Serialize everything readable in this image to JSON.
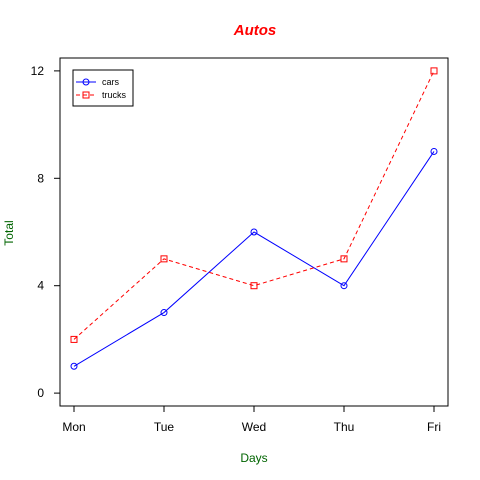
{
  "chart_data": {
    "type": "line",
    "title": "Autos",
    "xlabel": "Days",
    "ylabel": "Total",
    "categories": [
      "Mon",
      "Tue",
      "Wed",
      "Thu",
      "Fri"
    ],
    "yticks": [
      "0",
      "4",
      "8",
      "12"
    ],
    "ytick_values": [
      0,
      4,
      8,
      12
    ],
    "ylim": [
      -0.48,
      12.48
    ],
    "grid": false,
    "legend_position": "top-left",
    "series": [
      {
        "name": "cars",
        "values": [
          1,
          3,
          6,
          4,
          9
        ],
        "color": "#0000ff",
        "line_style": "solid",
        "marker": "circle"
      },
      {
        "name": "trucks",
        "values": [
          2,
          5,
          4,
          5,
          12
        ],
        "color": "#ff0000",
        "line_style": "dashed",
        "marker": "square"
      }
    ],
    "colors": {
      "title": "#ff0000",
      "axis_labels": "#006400",
      "axis": "#000000"
    }
  }
}
